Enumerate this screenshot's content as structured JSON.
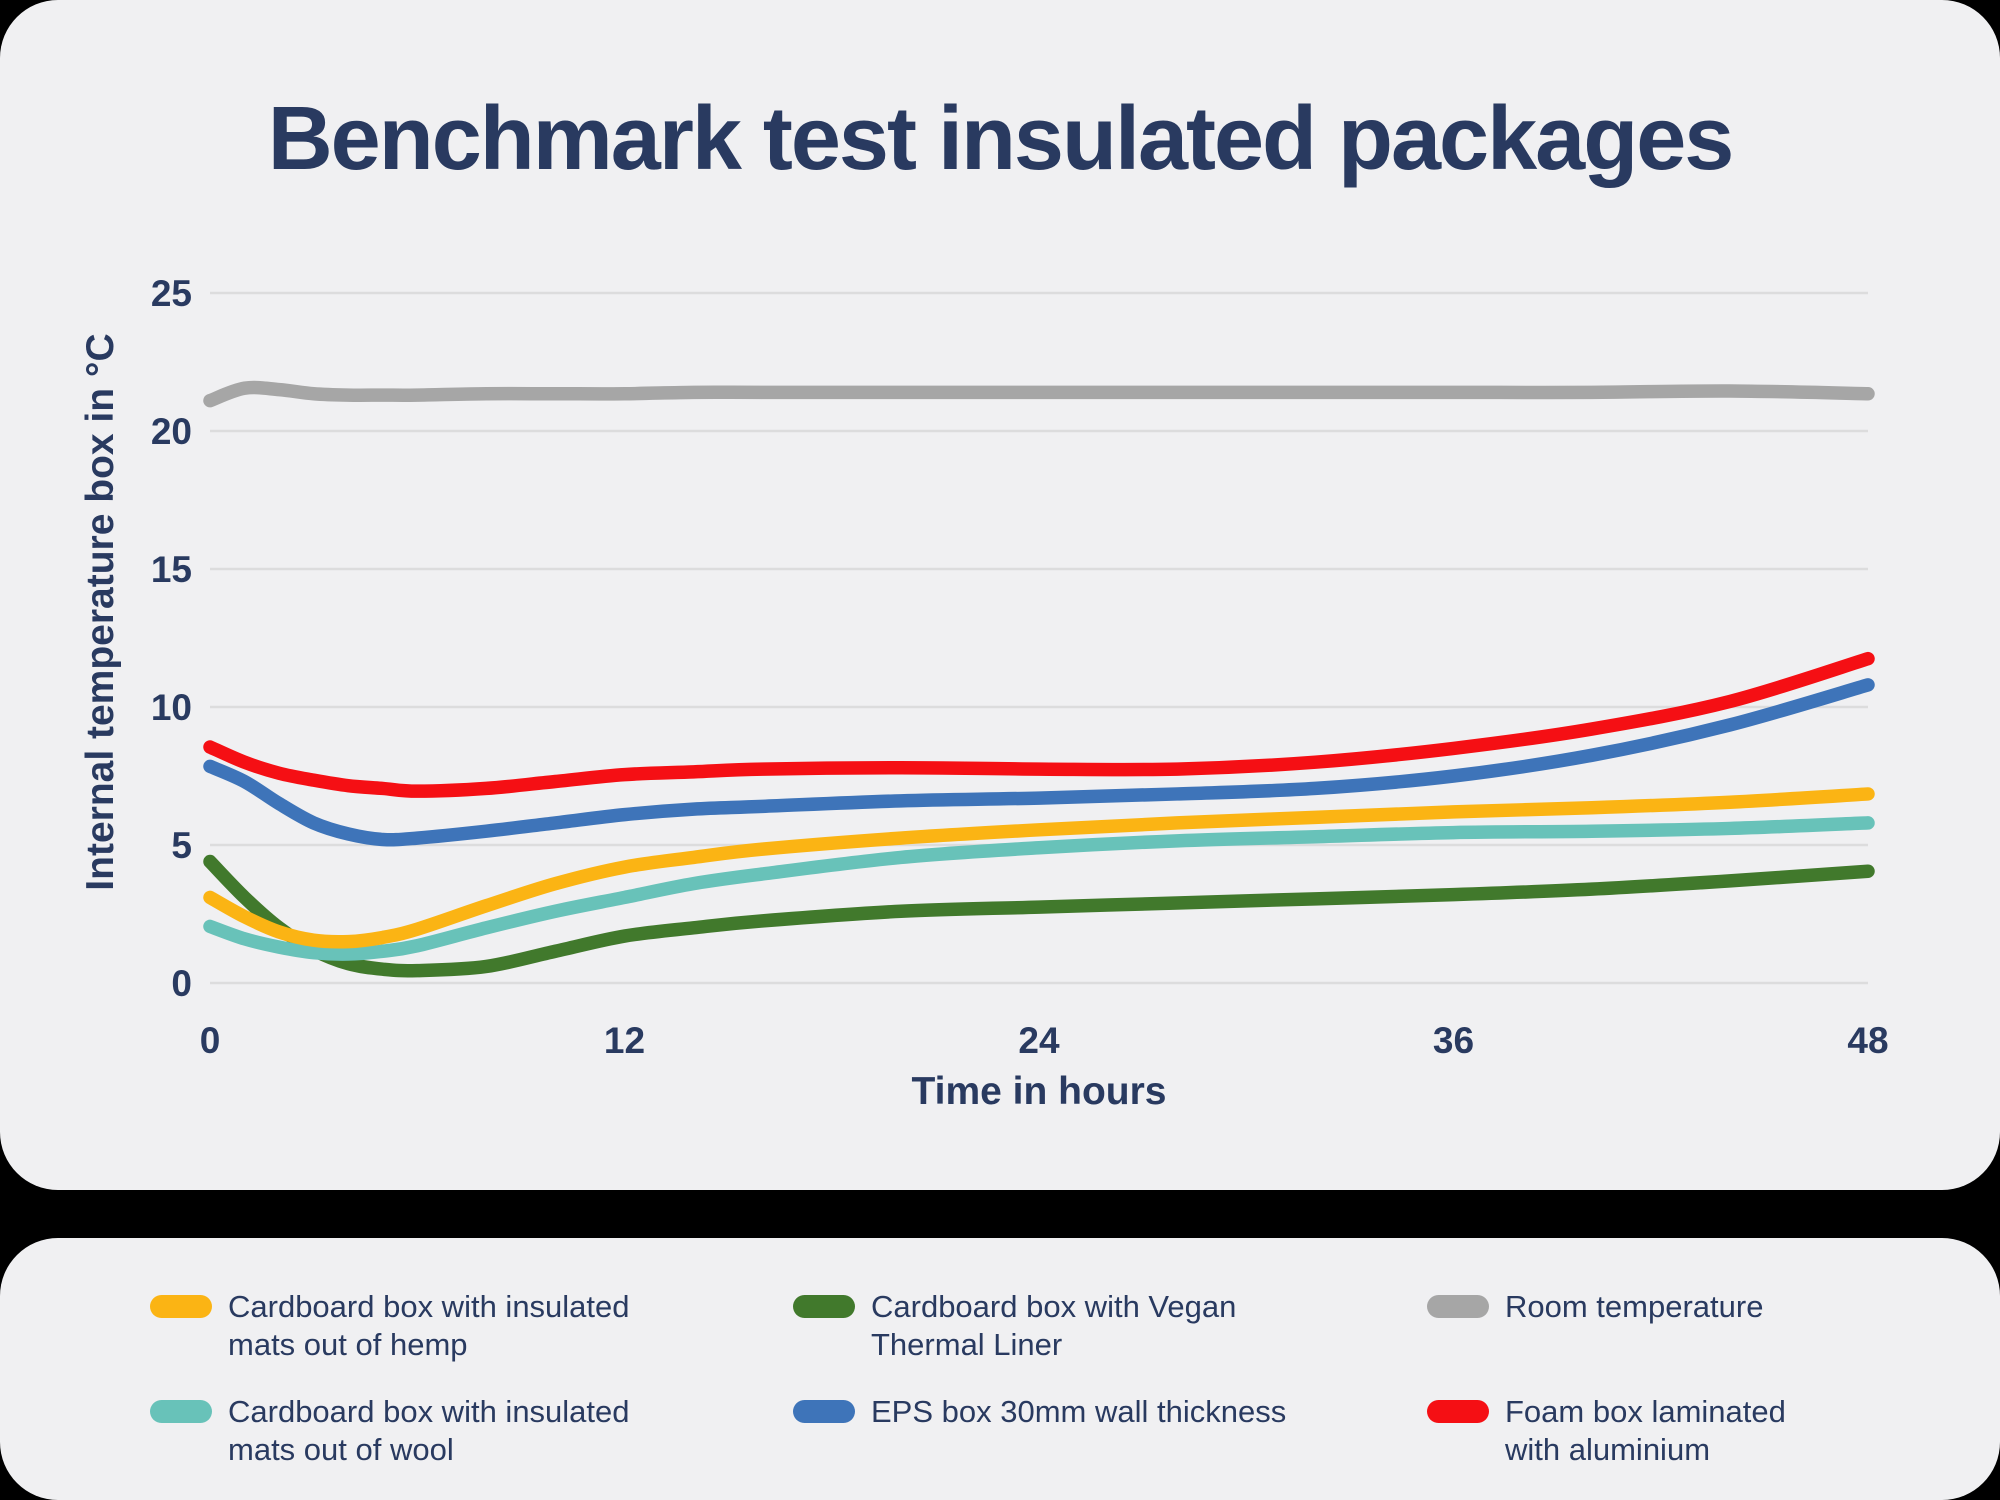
{
  "title": "Benchmark test insulated packages",
  "colors": {
    "background": "#000000",
    "panel": "#f0f0f2",
    "text": "#293a60",
    "gridline": "#dcdcdd"
  },
  "chart_data": {
    "type": "line",
    "title": "Benchmark test insulated packages",
    "xlabel": "Time in hours",
    "ylabel": "Internal temperature box in °C",
    "xlim": [
      0,
      48
    ],
    "ylim": [
      0,
      25
    ],
    "xticks": [
      0,
      12,
      24,
      36,
      48
    ],
    "yticks": [
      0,
      5,
      10,
      15,
      20,
      25
    ],
    "grid": "horizontal",
    "legend_position": "bottom-panel",
    "x": [
      0,
      1,
      2,
      3,
      4,
      5,
      6,
      8,
      10,
      12,
      14,
      16,
      20,
      24,
      28,
      32,
      36,
      40,
      44,
      48
    ],
    "series": [
      {
        "name": "Room temperature",
        "color": "#a6a6a6",
        "values": [
          21.1,
          21.55,
          21.5,
          21.35,
          21.3,
          21.3,
          21.3,
          21.35,
          21.35,
          21.35,
          21.4,
          21.4,
          21.4,
          21.4,
          21.4,
          21.4,
          21.4,
          21.4,
          21.45,
          21.35
        ]
      },
      {
        "name": "Cardboard box with Vegan Thermal Liner",
        "color": "#41792c",
        "values": [
          4.4,
          3.1,
          2.0,
          1.2,
          0.7,
          0.5,
          0.45,
          0.6,
          1.15,
          1.7,
          2.0,
          2.25,
          2.6,
          2.75,
          2.9,
          3.05,
          3.2,
          3.4,
          3.7,
          4.05
        ]
      },
      {
        "name": "Cardboard box with insulated mats out of wool",
        "color": "#68c2b9",
        "values": [
          2.05,
          1.6,
          1.3,
          1.1,
          1.05,
          1.15,
          1.35,
          2.0,
          2.6,
          3.1,
          3.6,
          3.95,
          4.55,
          4.9,
          5.15,
          5.3,
          5.45,
          5.5,
          5.6,
          5.8
        ]
      },
      {
        "name": "Cardboard box with insulated mats out of hemp",
        "color": "#fbb414",
        "values": [
          3.1,
          2.4,
          1.85,
          1.55,
          1.5,
          1.65,
          1.95,
          2.8,
          3.6,
          4.2,
          4.55,
          4.85,
          5.25,
          5.55,
          5.8,
          6.0,
          6.2,
          6.35,
          6.55,
          6.85
        ]
      },
      {
        "name": "EPS box 30mm wall thickness",
        "color": "#3e74b9",
        "values": [
          7.85,
          7.3,
          6.5,
          5.8,
          5.4,
          5.2,
          5.25,
          5.5,
          5.8,
          6.1,
          6.3,
          6.4,
          6.6,
          6.7,
          6.85,
          7.05,
          7.5,
          8.25,
          9.35,
          10.8
        ]
      },
      {
        "name": "Foam box laminated with aluminium",
        "color": "#f50f14",
        "values": [
          8.55,
          8.0,
          7.6,
          7.35,
          7.15,
          7.05,
          6.95,
          7.05,
          7.3,
          7.55,
          7.65,
          7.75,
          7.8,
          7.75,
          7.75,
          8.0,
          8.5,
          9.2,
          10.2,
          11.75
        ]
      }
    ]
  },
  "legend": {
    "items": [
      {
        "label": "Cardboard box with insulated\nmats out of hemp",
        "color": "#fbb414"
      },
      {
        "label": "Cardboard box with insulated\nmats out of wool",
        "color": "#68c2b9"
      },
      {
        "label": "Cardboard box with Vegan\nThermal Liner",
        "color": "#41792c"
      },
      {
        "label": "EPS box 30mm wall thickness",
        "color": "#3e74b9"
      },
      {
        "label": "Room temperature",
        "color": "#a6a6a6"
      },
      {
        "label": "Foam box laminated\nwith aluminium",
        "color": "#f50f14"
      }
    ]
  }
}
